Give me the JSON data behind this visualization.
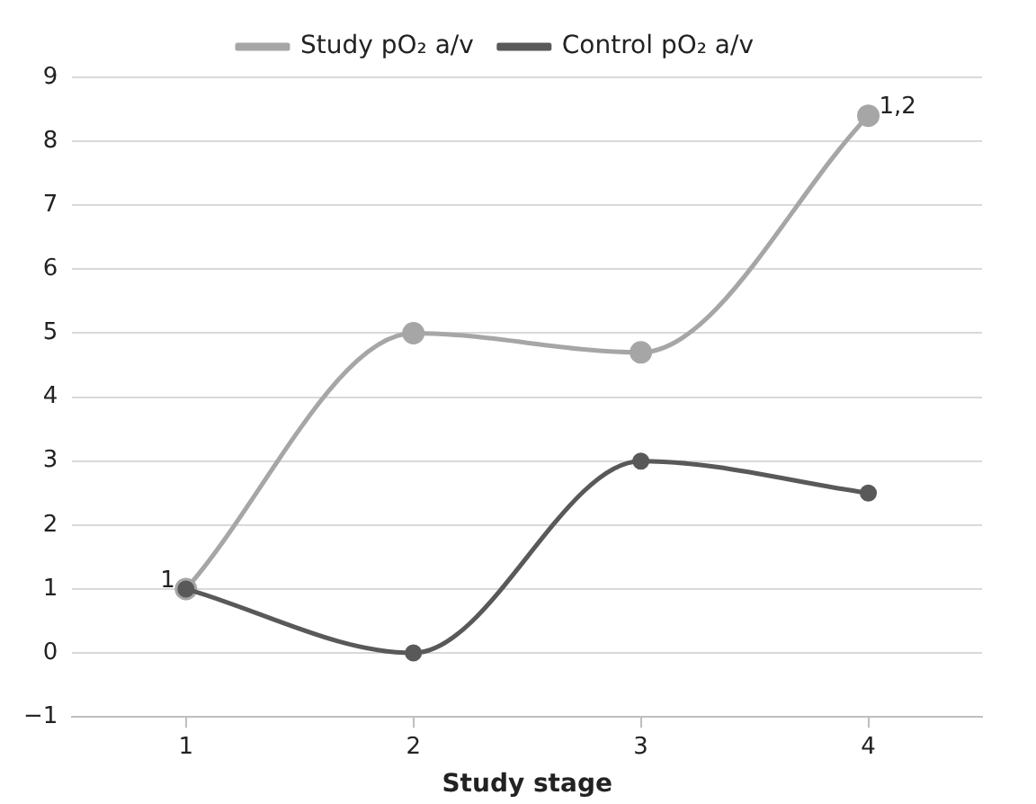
{
  "chart_data": {
    "type": "line",
    "xlabel": "Study stage",
    "categories": [
      "1",
      "2",
      "3",
      "4"
    ],
    "series": [
      {
        "name": "Study pO₂ a/v",
        "color": "#a6a6a6",
        "values": [
          1,
          5,
          4.7,
          8.4
        ]
      },
      {
        "name": "Control pO₂ a/v",
        "color": "#595959",
        "values": [
          1,
          0,
          3,
          2.5
        ]
      }
    ],
    "ylim": [
      -1,
      9
    ],
    "yticks": [
      {
        "value": -1,
        "label": "−1"
      },
      0,
      1,
      2,
      3,
      4,
      5,
      6,
      7,
      8,
      9
    ],
    "grid": "y",
    "legend": "top",
    "marker": "circle",
    "line_style": "solid",
    "annotations": [
      {
        "text": "1",
        "x": "1",
        "y": 1
      },
      {
        "text": "1,2",
        "x": "4",
        "y": 8.4
      }
    ]
  }
}
